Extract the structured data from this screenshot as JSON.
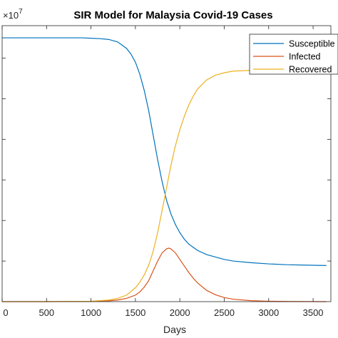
{
  "chart_data": {
    "type": "line",
    "title": "SIR Model for Malaysia Covid-19 Cases",
    "xlabel": "Days",
    "ylabel": "",
    "y_exponent_label": "×10",
    "y_exponent_power": "7",
    "xlim": [
      0,
      3700
    ],
    "ylim": [
      0,
      3.4
    ],
    "x_ticks": [
      0,
      500,
      1000,
      1500,
      2000,
      2500,
      3000,
      3500
    ],
    "x_tick_labels": [
      "0",
      "500",
      "1000",
      "1500",
      "2000",
      "2500",
      "3000",
      "3500"
    ],
    "y_ticks": [
      0.5,
      1.0,
      1.5,
      2.0,
      2.5,
      3.0
    ],
    "grid": false,
    "legend_position": "top-right",
    "series": [
      {
        "name": "Susceptible",
        "color": "#0072BD",
        "x": [
          0,
          300,
          600,
          900,
          1100,
          1200,
          1300,
          1400,
          1450,
          1500,
          1550,
          1600,
          1650,
          1700,
          1750,
          1800,
          1850,
          1900,
          1950,
          2000,
          2050,
          2100,
          2150,
          2200,
          2300,
          2400,
          2500,
          2600,
          2800,
          3000,
          3200,
          3400,
          3650
        ],
        "values": [
          3.25,
          3.25,
          3.25,
          3.25,
          3.24,
          3.23,
          3.2,
          3.12,
          3.05,
          2.95,
          2.8,
          2.6,
          2.35,
          2.05,
          1.75,
          1.48,
          1.25,
          1.08,
          0.95,
          0.85,
          0.77,
          0.71,
          0.67,
          0.63,
          0.58,
          0.55,
          0.52,
          0.5,
          0.48,
          0.465,
          0.455,
          0.45,
          0.445
        ]
      },
      {
        "name": "Infected",
        "color": "#D95319",
        "x": [
          0,
          500,
          1000,
          1200,
          1300,
          1400,
          1500,
          1550,
          1600,
          1650,
          1700,
          1750,
          1800,
          1850,
          1875,
          1900,
          1950,
          2000,
          2050,
          2100,
          2150,
          2200,
          2300,
          2400,
          2500,
          2600,
          2800,
          3000,
          3200,
          3400,
          3650
        ],
        "values": [
          0,
          0.0,
          0.003,
          0.01,
          0.02,
          0.04,
          0.08,
          0.12,
          0.18,
          0.26,
          0.38,
          0.5,
          0.6,
          0.65,
          0.66,
          0.65,
          0.6,
          0.52,
          0.44,
          0.36,
          0.29,
          0.23,
          0.14,
          0.085,
          0.05,
          0.03,
          0.012,
          0.005,
          0.002,
          0.001,
          0.0
        ]
      },
      {
        "name": "Recovered",
        "color": "#EDB120",
        "x": [
          0,
          500,
          1000,
          1200,
          1300,
          1400,
          1500,
          1550,
          1600,
          1650,
          1700,
          1750,
          1800,
          1850,
          1900,
          1950,
          2000,
          2050,
          2100,
          2150,
          2200,
          2300,
          2400,
          2500,
          2600,
          2800,
          3000,
          3200,
          3400,
          3650
        ],
        "values": [
          0,
          0.0,
          0.005,
          0.02,
          0.04,
          0.08,
          0.17,
          0.24,
          0.33,
          0.45,
          0.62,
          0.85,
          1.12,
          1.4,
          1.68,
          1.92,
          2.12,
          2.28,
          2.42,
          2.53,
          2.62,
          2.73,
          2.79,
          2.82,
          2.84,
          2.85,
          2.855,
          2.86,
          2.86,
          2.86
        ]
      }
    ]
  }
}
